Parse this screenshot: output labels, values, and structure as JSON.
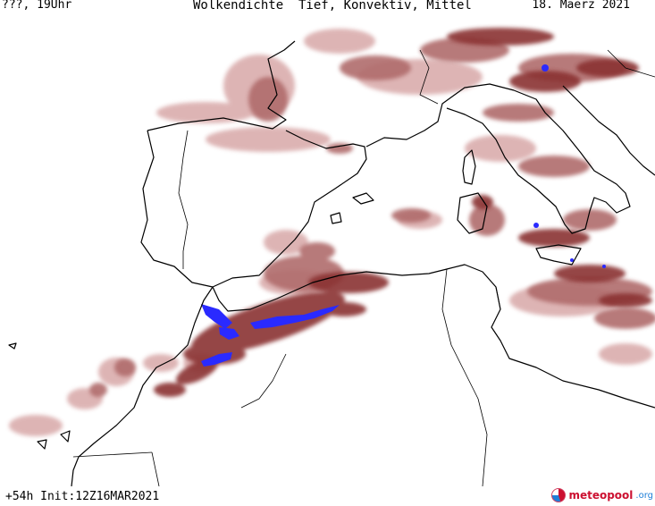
{
  "header": {
    "left": "???, 19Uhr",
    "center": "Wolkendichte  Tief, Konvektiv, Mittel",
    "right": "18. Maerz 2021"
  },
  "footer": {
    "left": "+54h Init:12Z16MAR2021",
    "logo_main": "meteopool",
    "logo_tld": ".org"
  },
  "colors": {
    "cloud_light": "#d8a8a8",
    "cloud_mid": "#b06c6c",
    "cloud_dark": "#8a3232",
    "cloud_dense": "#2a2aff",
    "coast": "#000000"
  },
  "map": {
    "region": "Western Mediterranean / Iberia / North Africa"
  }
}
